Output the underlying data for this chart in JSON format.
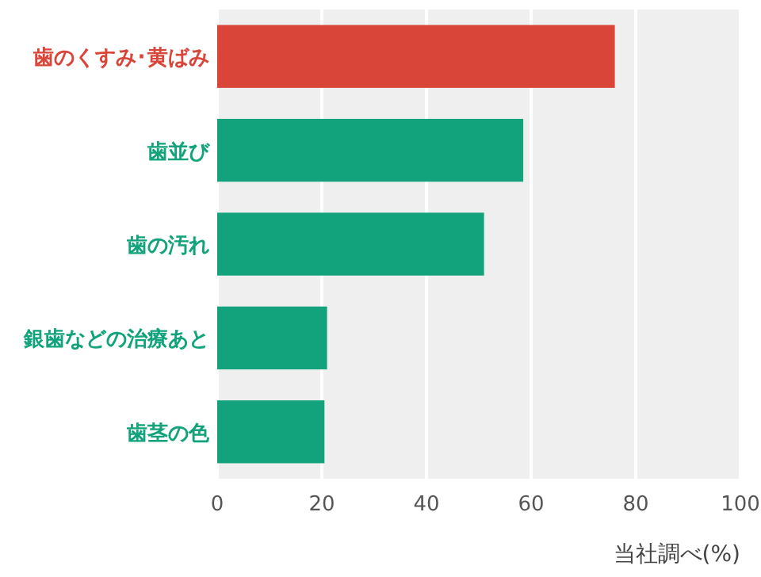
{
  "chart_data": {
    "type": "bar",
    "orientation": "horizontal",
    "categories": [
      "歯のくすみ･黄ばみ",
      "歯並び",
      "歯の汚れ",
      "銀歯などの治療あと",
      "歯茎の色"
    ],
    "values": [
      76,
      58.5,
      51,
      21,
      20.5
    ],
    "colors": [
      "#d94539",
      "#13a37c",
      "#13a37c",
      "#13a37c",
      "#13a37c"
    ],
    "xlabel": "当社調べ(%)",
    "xlim": [
      0,
      100
    ],
    "xticks": [
      0,
      20,
      40,
      60,
      80,
      100
    ],
    "grid": "x"
  }
}
